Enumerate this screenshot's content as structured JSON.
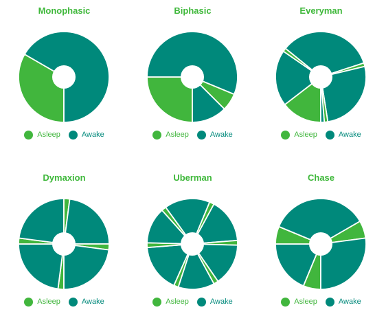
{
  "colors": {
    "asleep": "#41b63d",
    "awake": "#00897b",
    "separator": "#ffffff"
  },
  "legend": {
    "asleep_label": "Asleep",
    "awake_label": "Awake"
  },
  "chart_data": [
    {
      "type": "pie",
      "title": "Monophasic",
      "segments": [
        {
          "category": "Asleep",
          "start_hour": 0,
          "end_hour": 8
        },
        {
          "category": "Awake",
          "start_hour": 8,
          "end_hour": 24
        }
      ]
    },
    {
      "type": "pie",
      "title": "Biphasic",
      "segments": [
        {
          "category": "Asleep",
          "start_hour": 0,
          "end_hour": 6
        },
        {
          "category": "Awake",
          "start_hour": 6,
          "end_hour": 19.5
        },
        {
          "category": "Asleep",
          "start_hour": 19.5,
          "end_hour": 21
        },
        {
          "category": "Awake",
          "start_hour": 21,
          "end_hour": 24
        }
      ]
    },
    {
      "type": "pie",
      "title": "Everyman",
      "segments": [
        {
          "category": "Asleep",
          "start_hour": 0,
          "end_hour": 3.5
        },
        {
          "category": "Awake",
          "start_hour": 3.5,
          "end_hour": 8.3
        },
        {
          "category": "Asleep",
          "start_hour": 8.3,
          "end_hour": 8.6
        },
        {
          "category": "Awake",
          "start_hour": 8.6,
          "end_hour": 16.8
        },
        {
          "category": "Asleep",
          "start_hour": 16.8,
          "end_hour": 17.1
        },
        {
          "category": "Awake",
          "start_hour": 17.1,
          "end_hour": 23.4
        },
        {
          "category": "Asleep",
          "start_hour": 23.4,
          "end_hour": 23.7
        },
        {
          "category": "Awake",
          "start_hour": 23.7,
          "end_hour": 24
        }
      ]
    },
    {
      "type": "pie",
      "title": "Dymaxion",
      "segments": [
        {
          "category": "Asleep",
          "start_hour": 0,
          "end_hour": 0.5
        },
        {
          "category": "Awake",
          "start_hour": 0.5,
          "end_hour": 6
        },
        {
          "category": "Asleep",
          "start_hour": 6,
          "end_hour": 6.5
        },
        {
          "category": "Awake",
          "start_hour": 6.5,
          "end_hour": 12
        },
        {
          "category": "Asleep",
          "start_hour": 12,
          "end_hour": 12.5
        },
        {
          "category": "Awake",
          "start_hour": 12.5,
          "end_hour": 18
        },
        {
          "category": "Asleep",
          "start_hour": 18,
          "end_hour": 18.5
        },
        {
          "category": "Awake",
          "start_hour": 18.5,
          "end_hour": 24
        }
      ]
    },
    {
      "type": "pie",
      "title": "Uberman",
      "segments": [
        {
          "category": "Asleep",
          "start_hour": 1.2,
          "end_hour": 1.6
        },
        {
          "category": "Awake",
          "start_hour": 1.6,
          "end_hour": 5.7
        },
        {
          "category": "Asleep",
          "start_hour": 5.7,
          "end_hour": 6.1
        },
        {
          "category": "Awake",
          "start_hour": 6.1,
          "end_hour": 9.2
        },
        {
          "category": "Asleep",
          "start_hour": 9.2,
          "end_hour": 9.6
        },
        {
          "category": "Awake",
          "start_hour": 9.6,
          "end_hour": 13.5
        },
        {
          "category": "Asleep",
          "start_hour": 13.5,
          "end_hour": 13.9
        },
        {
          "category": "Awake",
          "start_hour": 13.9,
          "end_hour": 17.7
        },
        {
          "category": "Asleep",
          "start_hour": 17.7,
          "end_hour": 18.1
        },
        {
          "category": "Awake",
          "start_hour": 18.1,
          "end_hour": 21.7
        },
        {
          "category": "Asleep",
          "start_hour": 21.7,
          "end_hour": 22.1
        },
        {
          "category": "Awake",
          "start_hour": 22.1,
          "end_hour": 25.2
        }
      ]
    },
    {
      "type": "pie",
      "title": "Chase",
      "segments": [
        {
          "category": "Asleep",
          "start_hour": 0,
          "end_hour": 1.5
        },
        {
          "category": "Awake",
          "start_hour": 1.5,
          "end_hour": 6
        },
        {
          "category": "Asleep",
          "start_hour": 6,
          "end_hour": 7.5
        },
        {
          "category": "Awake",
          "start_hour": 7.5,
          "end_hour": 16
        },
        {
          "category": "Asleep",
          "start_hour": 16,
          "end_hour": 17.5
        },
        {
          "category": "Awake",
          "start_hour": 17.5,
          "end_hour": 24
        }
      ]
    }
  ]
}
